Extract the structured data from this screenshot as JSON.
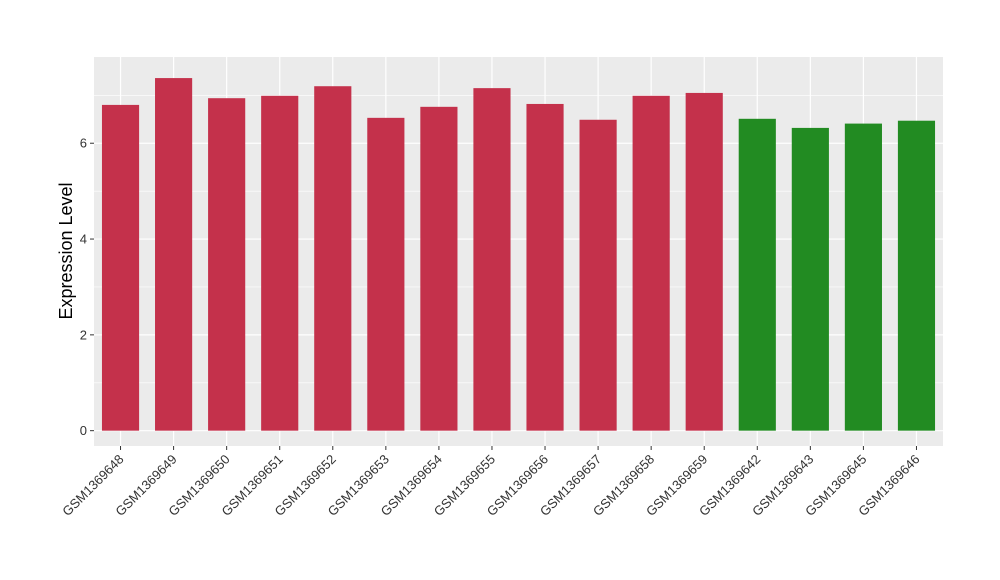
{
  "chart_data": {
    "type": "bar",
    "title": "",
    "xlabel": "",
    "ylabel": "Expression Level",
    "ylim": [
      -0.32,
      7.8
    ],
    "yticks": [
      0,
      2,
      4,
      6
    ],
    "grid": true,
    "legend": "none",
    "colors": {
      "group_a": "#c4314b",
      "group_b": "#228b22",
      "panel": "#ebebeb",
      "grid": "#ffffff"
    },
    "categories": [
      "GSM1369648",
      "GSM1369649",
      "GSM1369650",
      "GSM1369651",
      "GSM1369652",
      "GSM1369653",
      "GSM1369654",
      "GSM1369655",
      "GSM1369656",
      "GSM1369657",
      "GSM1369658",
      "GSM1369659",
      "GSM1369642",
      "GSM1369643",
      "GSM1369645",
      "GSM1369646"
    ],
    "values": [
      6.8,
      7.36,
      6.94,
      6.99,
      7.19,
      6.53,
      6.76,
      7.15,
      6.82,
      6.49,
      6.99,
      7.05,
      6.51,
      6.32,
      6.41,
      6.47
    ],
    "groups": [
      "a",
      "a",
      "a",
      "a",
      "a",
      "a",
      "a",
      "a",
      "a",
      "a",
      "a",
      "a",
      "b",
      "b",
      "b",
      "b"
    ]
  }
}
